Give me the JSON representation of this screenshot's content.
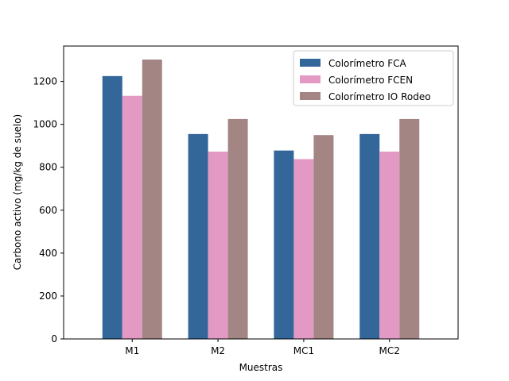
{
  "chart_data": {
    "type": "bar",
    "title": "",
    "xlabel": "Muestras",
    "ylabel": "Carbono activo (mg/kg de suelo)",
    "categories": [
      "M1",
      "M2",
      "MC1",
      "MC2"
    ],
    "ylim": [
      0,
      1365
    ],
    "yticks": [
      0,
      200,
      400,
      600,
      800,
      1000,
      1200
    ],
    "legend_position": "top-right",
    "series": [
      {
        "name": "Colorímetro FCA",
        "color": "#336699",
        "values": [
          1225,
          955,
          878,
          955
        ]
      },
      {
        "name": "Colorímetro FCEN",
        "color": "#e299c4",
        "values": [
          1133,
          873,
          838,
          873
        ]
      },
      {
        "name": "Colorímetro IO Rodeo",
        "color": "#a38584",
        "values": [
          1302,
          1025,
          950,
          1025
        ]
      }
    ]
  }
}
